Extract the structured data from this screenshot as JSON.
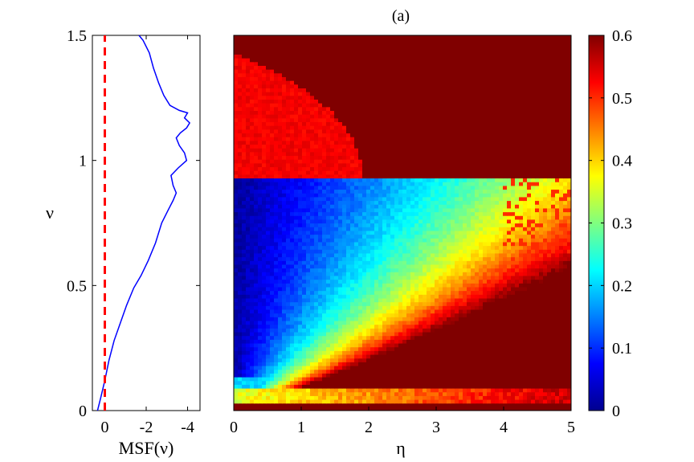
{
  "chart_data": [
    {
      "type": "line",
      "xlabel": "MSF(ν)",
      "ylabel": "ν",
      "x_reversed": true,
      "xlim": [
        0.6,
        -4.6
      ],
      "ylim": [
        0,
        1.5
      ],
      "xticks": [
        "0",
        "-2",
        "-4"
      ],
      "xtick_values": [
        0,
        -2,
        -4
      ],
      "yticks": [
        "0",
        "0.5",
        "1",
        "1.5"
      ],
      "ytick_values": [
        0,
        0.5,
        1,
        1.5
      ],
      "series": [
        {
          "color": "#0000ff",
          "style": "solid",
          "points": [
            [
              0.35,
              0.0
            ],
            [
              0.2,
              0.05
            ],
            [
              0.0,
              0.12
            ],
            [
              -0.2,
              0.2
            ],
            [
              -0.45,
              0.28
            ],
            [
              -0.75,
              0.35
            ],
            [
              -1.05,
              0.42
            ],
            [
              -1.4,
              0.49
            ],
            [
              -1.75,
              0.54
            ],
            [
              -2.1,
              0.6
            ],
            [
              -2.45,
              0.67
            ],
            [
              -2.75,
              0.75
            ],
            [
              -3.05,
              0.8
            ],
            [
              -3.3,
              0.84
            ],
            [
              -3.45,
              0.87
            ],
            [
              -3.3,
              0.9
            ],
            [
              -3.2,
              0.94
            ],
            [
              -3.55,
              0.97
            ],
            [
              -3.95,
              1.0
            ],
            [
              -3.85,
              1.03
            ],
            [
              -3.6,
              1.06
            ],
            [
              -3.45,
              1.09
            ],
            [
              -3.65,
              1.11
            ],
            [
              -3.95,
              1.13
            ],
            [
              -4.1,
              1.15
            ],
            [
              -3.85,
              1.17
            ],
            [
              -4.0,
              1.19
            ],
            [
              -3.6,
              1.2
            ],
            [
              -3.15,
              1.22
            ],
            [
              -2.85,
              1.26
            ],
            [
              -2.6,
              1.31
            ],
            [
              -2.35,
              1.37
            ],
            [
              -2.15,
              1.43
            ],
            [
              -1.85,
              1.48
            ],
            [
              -1.65,
              1.5
            ]
          ]
        },
        {
          "color": "#ff0000",
          "style": "dashed",
          "points": [
            [
              0,
              0
            ],
            [
              0,
              1.5
            ]
          ]
        }
      ]
    },
    {
      "type": "heatmap",
      "title": "(a)",
      "xlabel": "η",
      "ylabel": "",
      "xlim": [
        0,
        5
      ],
      "ylim": [
        0,
        1.5
      ],
      "xticks": [
        "0",
        "1",
        "2",
        "3",
        "4",
        "5"
      ],
      "xtick_values": [
        0,
        1,
        2,
        3,
        4,
        5
      ],
      "colormap": "jet",
      "colorbar": {
        "range": [
          0,
          0.6
        ],
        "ticks": [
          "0",
          "0.1",
          "0.2",
          "0.3",
          "0.4",
          "0.5",
          "0.6"
        ],
        "tick_values": [
          0,
          0.1,
          0.2,
          0.3,
          0.4,
          0.5,
          0.6
        ]
      },
      "regions": [
        {
          "description": "nu above ~0.93: value 0.6 saturated, except red ~0.53 patch at small eta for nu 0.93-1.42 (extent decreasing to eta~1.9)"
        },
        {
          "description": "nu below ~0.93: low values (~0.02) at small eta rising with eta; yellow-red band near nu~0.05 and saturated strip below nu~0.03"
        }
      ],
      "transition_nu": 0.935
    }
  ]
}
